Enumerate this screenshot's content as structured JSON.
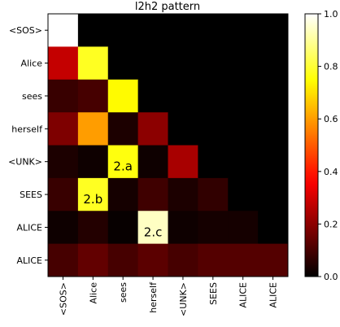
{
  "chart_data": {
    "type": "heatmap",
    "title": "l2h2 pattern",
    "x_labels": [
      "<SOS>",
      "Alice",
      "sees",
      "herself",
      "<UNK>",
      "SEES",
      "ALICE",
      "ALICE"
    ],
    "y_labels": [
      "<SOS>",
      "Alice",
      "sees",
      "herself",
      "<UNK>",
      "SEES",
      "ALICE",
      "ALICE"
    ],
    "values": [
      [
        1.0,
        0.0,
        0.0,
        0.0,
        0.0,
        0.0,
        0.0,
        0.0
      ],
      [
        0.28,
        0.78,
        0.0,
        0.0,
        0.0,
        0.0,
        0.0,
        0.0
      ],
      [
        0.08,
        0.1,
        0.74,
        0.0,
        0.0,
        0.0,
        0.0,
        0.0
      ],
      [
        0.18,
        0.6,
        0.04,
        0.2,
        0.0,
        0.0,
        0.0,
        0.0
      ],
      [
        0.04,
        0.02,
        0.76,
        0.02,
        0.24,
        0.0,
        0.0,
        0.0
      ],
      [
        0.08,
        0.78,
        0.03,
        0.09,
        0.04,
        0.07,
        0.0,
        0.0
      ],
      [
        0.02,
        0.05,
        0.01,
        0.94,
        0.02,
        0.03,
        0.03,
        0.0
      ],
      [
        0.1,
        0.14,
        0.1,
        0.13,
        0.1,
        0.12,
        0.12,
        0.12
      ]
    ],
    "annotations": [
      {
        "row": 4,
        "col": 2,
        "text": "2.a"
      },
      {
        "row": 5,
        "col": 1,
        "text": "2.b"
      },
      {
        "row": 6,
        "col": 3,
        "text": "2.c"
      }
    ],
    "colormap": "hot",
    "colorbar": {
      "range": [
        0.0,
        1.0
      ],
      "ticks": [
        "0.0",
        "0.2",
        "0.4",
        "0.6",
        "0.8",
        "1.0"
      ]
    }
  }
}
